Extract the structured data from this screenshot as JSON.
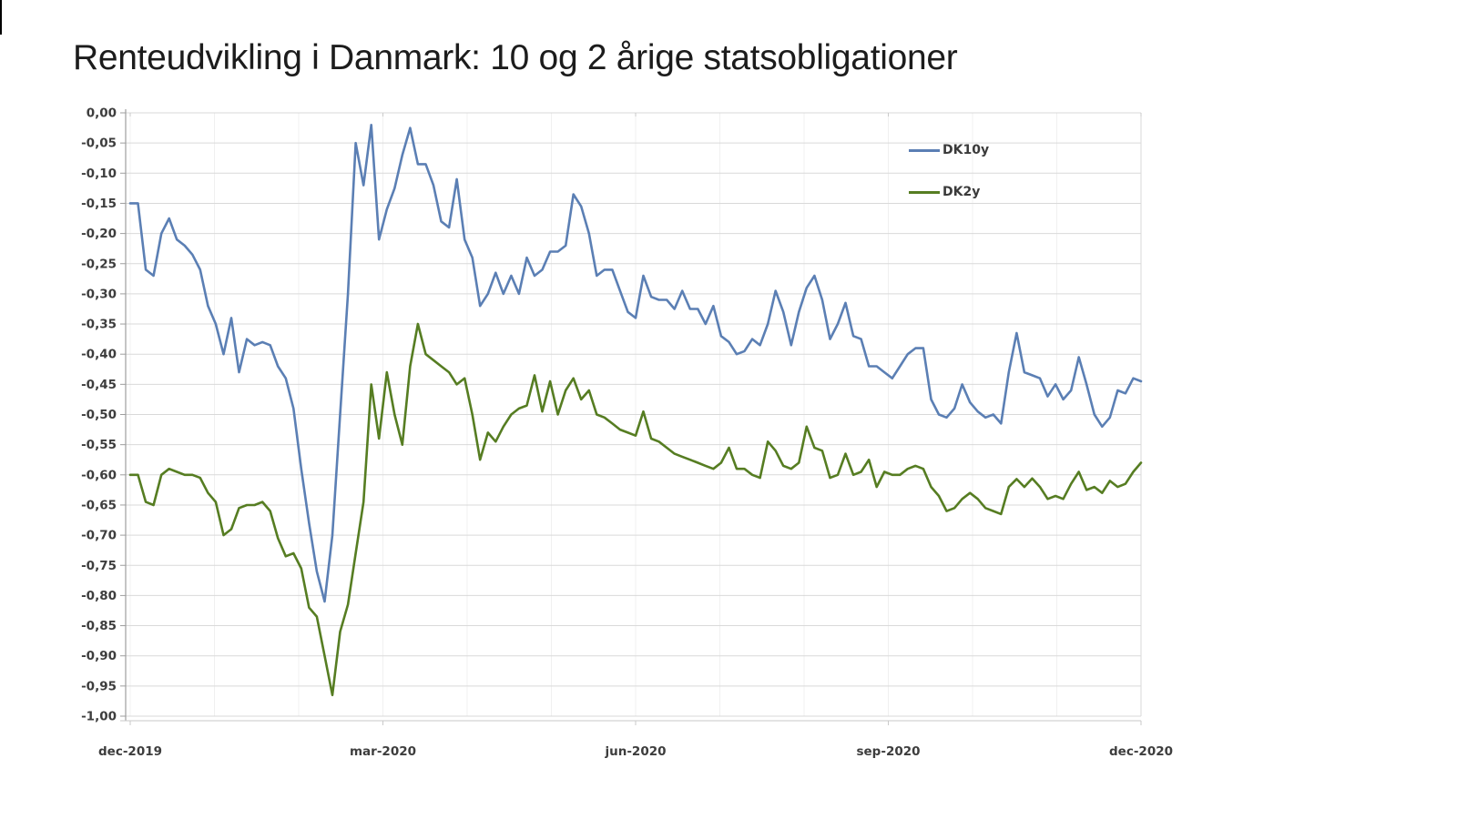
{
  "title": "Renteudvikling i Danmark: 10 og 2 årige statsobligationer",
  "chart_data": {
    "type": "line",
    "title": "Renteudvikling i Danmark: 10 og 2 årige statsobligationer",
    "xlabel": "",
    "ylabel": "",
    "ylim": [
      -1.0,
      0.0
    ],
    "y_step": 0.05,
    "grid": "horizontal-major-with-faint-monthly-verticals",
    "legend_position": "inside-top-right",
    "x_tick_labels": [
      "dec-2019",
      "mar-2020",
      "jun-2020",
      "sep-2020",
      "dec-2020"
    ],
    "y_tick_labels": [
      "0,00",
      "-0,05",
      "-0,10",
      "-0,15",
      "-0,20",
      "-0,25",
      "-0,30",
      "-0,35",
      "-0,40",
      "-0,45",
      "-0,50",
      "-0,55",
      "-0,60",
      "-0,65",
      "-0,70",
      "-0,75",
      "-0,80",
      "-0,85",
      "-0,90",
      "-0,95",
      "-1,00"
    ],
    "series": [
      {
        "name": "DK10y",
        "color": "#5b7fb4",
        "values": [
          -0.15,
          -0.15,
          -0.26,
          -0.27,
          -0.2,
          -0.175,
          -0.21,
          -0.22,
          -0.235,
          -0.26,
          -0.32,
          -0.35,
          -0.4,
          -0.34,
          -0.43,
          -0.375,
          -0.385,
          -0.38,
          -0.385,
          -0.42,
          -0.44,
          -0.49,
          -0.59,
          -0.68,
          -0.76,
          -0.81,
          -0.7,
          -0.5,
          -0.3,
          -0.05,
          -0.12,
          -0.02,
          -0.21,
          -0.16,
          -0.125,
          -0.07,
          -0.025,
          -0.085,
          -0.085,
          -0.12,
          -0.18,
          -0.19,
          -0.11,
          -0.21,
          -0.24,
          -0.32,
          -0.3,
          -0.265,
          -0.3,
          -0.27,
          -0.3,
          -0.24,
          -0.27,
          -0.26,
          -0.23,
          -0.23,
          -0.22,
          -0.135,
          -0.155,
          -0.2,
          -0.27,
          -0.26,
          -0.26,
          -0.295,
          -0.33,
          -0.34,
          -0.27,
          -0.305,
          -0.31,
          -0.31,
          -0.325,
          -0.295,
          -0.325,
          -0.325,
          -0.35,
          -0.32,
          -0.37,
          -0.38,
          -0.4,
          -0.395,
          -0.375,
          -0.385,
          -0.35,
          -0.295,
          -0.33,
          -0.385,
          -0.33,
          -0.29,
          -0.27,
          -0.31,
          -0.375,
          -0.35,
          -0.315,
          -0.37,
          -0.375,
          -0.42,
          -0.42,
          -0.43,
          -0.44,
          -0.42,
          -0.4,
          -0.39,
          -0.39,
          -0.475,
          -0.5,
          -0.505,
          -0.49,
          -0.45,
          -0.48,
          -0.495,
          -0.505,
          -0.5,
          -0.515,
          -0.43,
          -0.365,
          -0.43,
          -0.435,
          -0.44,
          -0.47,
          -0.45,
          -0.475,
          -0.46,
          -0.405,
          -0.45,
          -0.5,
          -0.52,
          -0.505,
          -0.46,
          -0.465,
          -0.44,
          -0.445
        ]
      },
      {
        "name": "DK2y",
        "color": "#567d22",
        "values": [
          -0.6,
          -0.6,
          -0.645,
          -0.65,
          -0.6,
          -0.59,
          -0.595,
          -0.6,
          -0.6,
          -0.605,
          -0.63,
          -0.645,
          -0.7,
          -0.69,
          -0.655,
          -0.65,
          -0.65,
          -0.645,
          -0.66,
          -0.705,
          -0.735,
          -0.73,
          -0.755,
          -0.82,
          -0.835,
          -0.9,
          -0.965,
          -0.86,
          -0.815,
          -0.73,
          -0.645,
          -0.45,
          -0.54,
          -0.43,
          -0.5,
          -0.55,
          -0.42,
          -0.35,
          -0.4,
          -0.41,
          -0.42,
          -0.43,
          -0.45,
          -0.44,
          -0.5,
          -0.575,
          -0.53,
          -0.545,
          -0.52,
          -0.5,
          -0.49,
          -0.485,
          -0.435,
          -0.495,
          -0.445,
          -0.5,
          -0.46,
          -0.44,
          -0.475,
          -0.46,
          -0.5,
          -0.505,
          -0.515,
          -0.525,
          -0.53,
          -0.535,
          -0.495,
          -0.54,
          -0.545,
          -0.555,
          -0.565,
          -0.57,
          -0.575,
          -0.58,
          -0.585,
          -0.59,
          -0.58,
          -0.555,
          -0.59,
          -0.59,
          -0.6,
          -0.605,
          -0.545,
          -0.56,
          -0.585,
          -0.59,
          -0.58,
          -0.52,
          -0.555,
          -0.56,
          -0.605,
          -0.6,
          -0.565,
          -0.6,
          -0.595,
          -0.575,
          -0.62,
          -0.595,
          -0.6,
          -0.6,
          -0.59,
          -0.585,
          -0.59,
          -0.62,
          -0.635,
          -0.66,
          -0.655,
          -0.64,
          -0.63,
          -0.64,
          -0.655,
          -0.66,
          -0.665,
          -0.62,
          -0.607,
          -0.62,
          -0.606,
          -0.62,
          -0.64,
          -0.635,
          -0.64,
          -0.615,
          -0.595,
          -0.625,
          -0.62,
          -0.63,
          -0.61,
          -0.62,
          -0.615,
          -0.595,
          -0.58
        ]
      }
    ]
  },
  "colors": {
    "gridline": "#d9d9d9",
    "month_gridline": "#f0f0f0",
    "axis": "#9e9e9e",
    "bottom_axis": "#c9c9c9",
    "tick_label": "#3d3d3d"
  }
}
